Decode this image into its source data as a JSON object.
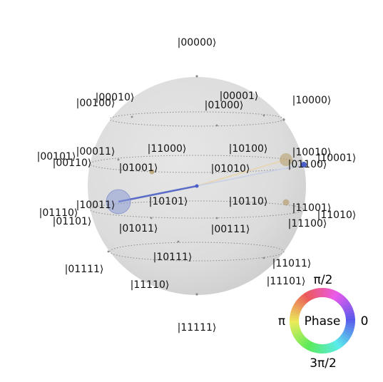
{
  "figure": {
    "type": "qsphere",
    "qubits": 5
  },
  "basis_states": [
    {
      "id": "00000",
      "label": "|00000⟩"
    },
    {
      "id": "00010",
      "label": "|00010⟩"
    },
    {
      "id": "00100",
      "label": "|00100⟩"
    },
    {
      "id": "00001",
      "label": "|00001⟩"
    },
    {
      "id": "01000",
      "label": "|01000⟩"
    },
    {
      "id": "10000",
      "label": "|10000⟩"
    },
    {
      "id": "00101",
      "label": "|00101⟩"
    },
    {
      "id": "00011",
      "label": "|00011⟩"
    },
    {
      "id": "00110",
      "label": "|00110⟩"
    },
    {
      "id": "11000",
      "label": "|11000⟩"
    },
    {
      "id": "10100",
      "label": "|10100⟩"
    },
    {
      "id": "10010",
      "label": "|10010⟩"
    },
    {
      "id": "10001",
      "label": "|10001⟩"
    },
    {
      "id": "01001",
      "label": "|01001⟩"
    },
    {
      "id": "01010",
      "label": "|01010⟩"
    },
    {
      "id": "01100",
      "label": "|01100⟩"
    },
    {
      "id": "10011",
      "label": "|10011⟩"
    },
    {
      "id": "10101",
      "label": "|10101⟩"
    },
    {
      "id": "10110",
      "label": "|10110⟩"
    },
    {
      "id": "11001",
      "label": "|11001⟩"
    },
    {
      "id": "01110",
      "label": "|01110⟩"
    },
    {
      "id": "11010",
      "label": "|11010⟩"
    },
    {
      "id": "01101",
      "label": "|01101⟩"
    },
    {
      "id": "01011",
      "label": "|01011⟩"
    },
    {
      "id": "00111",
      "label": "|00111⟩"
    },
    {
      "id": "11100",
      "label": "|11100⟩"
    },
    {
      "id": "10111",
      "label": "|10111⟩"
    },
    {
      "id": "11011",
      "label": "|11011⟩"
    },
    {
      "id": "01111",
      "label": "|01111⟩"
    },
    {
      "id": "11101",
      "label": "|11101⟩"
    },
    {
      "id": "11110",
      "label": "|11110⟩"
    },
    {
      "id": "11111",
      "label": "|11111⟩"
    }
  ],
  "amplitudes": [
    {
      "state": "10011",
      "phase_color": "#6a78c8"
    },
    {
      "state": "01100",
      "phase_color": "#5566c8"
    },
    {
      "state": "10010",
      "phase_color": "#b8a070"
    },
    {
      "state": "11001",
      "phase_color": "#b8a070"
    },
    {
      "state": "01001",
      "phase_color": "#b8a070"
    }
  ],
  "phase_wheel": {
    "title": "Phase",
    "label_0": "0",
    "label_pi_2": "π/2",
    "label_pi": "π",
    "label_3pi_2": "3π/2"
  }
}
